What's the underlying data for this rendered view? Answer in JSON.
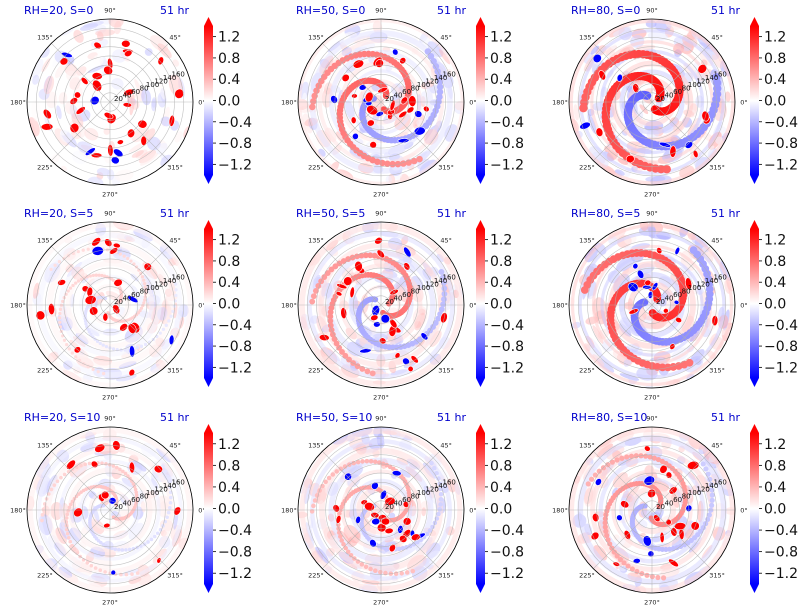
{
  "figure": {
    "colors": {
      "positive": "#ff0000",
      "negative": "#0000ff",
      "neutral": "#ffffff",
      "title": "#0000cc",
      "grid": "#b0b0b0"
    }
  },
  "chart_data": [
    {
      "type": "heatmap",
      "projection": "polar",
      "title_left": "RH=20, S=0",
      "title_right": "51 hr",
      "theta_ticks": [
        "0°",
        "45°",
        "90°",
        "135°",
        "180°",
        "225°",
        "270°",
        "315°"
      ],
      "r_ticks": [
        "20",
        "40",
        "60",
        "80",
        "100",
        "120",
        "140",
        "160"
      ],
      "colorbar": {
        "ticks": [
          "1.2",
          "0.8",
          "0.4",
          "0.0",
          "−0.4",
          "−0.8",
          "−1.2"
        ],
        "range": [
          -1.4,
          1.4
        ],
        "extend": "both"
      },
      "pattern": {
        "seed": 11,
        "bg": 0.18,
        "rings": 0.0,
        "spiral": 0.0,
        "blobs": 34,
        "blobR": [
          20,
          150
        ],
        "neg": 0.15
      }
    },
    {
      "type": "heatmap",
      "projection": "polar",
      "title_left": "RH=50, S=0",
      "title_right": "51 hr",
      "theta_ticks": [
        "0°",
        "45°",
        "90°",
        "135°",
        "180°",
        "225°",
        "270°",
        "315°"
      ],
      "r_ticks": [
        "20",
        "40",
        "60",
        "80",
        "100",
        "120",
        "140",
        "160"
      ],
      "colorbar": {
        "ticks": [
          "1.2",
          "0.8",
          "0.4",
          "0.0",
          "−0.4",
          "−0.8",
          "−1.2"
        ],
        "range": [
          -1.4,
          1.4
        ],
        "extend": "both"
      },
      "pattern": {
        "seed": 23,
        "bg": 0.3,
        "rings": 0.25,
        "spiral": 0.7,
        "blobs": 30,
        "blobR": [
          25,
          110
        ],
        "neg": 0.25
      }
    },
    {
      "type": "heatmap",
      "projection": "polar",
      "title_left": "RH=80, S=0",
      "title_right": "51 hr",
      "theta_ticks": [
        "0°",
        "45°",
        "90°",
        "135°",
        "180°",
        "225°",
        "270°",
        "315°"
      ],
      "r_ticks": [
        "20",
        "40",
        "60",
        "80",
        "100",
        "120",
        "140",
        "160"
      ],
      "colorbar": {
        "ticks": [
          "1.2",
          "0.8",
          "0.4",
          "0.0",
          "−0.4",
          "−0.8",
          "−1.2"
        ],
        "range": [
          -1.4,
          1.4
        ],
        "extend": "both"
      },
      "pattern": {
        "seed": 37,
        "bg": 0.45,
        "rings": 0.45,
        "spiral": 1.0,
        "blobs": 14,
        "blobR": [
          40,
          150
        ],
        "neg": 0.35
      }
    },
    {
      "type": "heatmap",
      "projection": "polar",
      "title_left": "RH=20, S=5",
      "title_right": "51 hr",
      "theta_ticks": [
        "0°",
        "45°",
        "90°",
        "135°",
        "180°",
        "225°",
        "270°",
        "315°"
      ],
      "r_ticks": [
        "20",
        "40",
        "60",
        "80",
        "100",
        "120",
        "140",
        "160"
      ],
      "colorbar": {
        "ticks": [
          "1.2",
          "0.8",
          "0.4",
          "0.0",
          "−0.4",
          "−0.8",
          "−1.2"
        ],
        "range": [
          -1.4,
          1.4
        ],
        "extend": "both"
      },
      "pattern": {
        "seed": 41,
        "bg": 0.22,
        "rings": 0.1,
        "spiral": 0.2,
        "blobs": 24,
        "blobR": [
          15,
          150
        ],
        "neg": 0.3
      }
    },
    {
      "type": "heatmap",
      "projection": "polar",
      "title_left": "RH=50, S=5",
      "title_right": "51 hr",
      "theta_ticks": [
        "0°",
        "45°",
        "90°",
        "135°",
        "180°",
        "225°",
        "270°",
        "315°"
      ],
      "r_ticks": [
        "20",
        "40",
        "60",
        "80",
        "100",
        "120",
        "140",
        "160"
      ],
      "colorbar": {
        "ticks": [
          "1.2",
          "0.8",
          "0.4",
          "0.0",
          "−0.4",
          "−0.8",
          "−1.2"
        ],
        "range": [
          -1.4,
          1.4
        ],
        "extend": "both"
      },
      "pattern": {
        "seed": 53,
        "bg": 0.3,
        "rings": 0.3,
        "spiral": 0.6,
        "blobs": 28,
        "blobR": [
          15,
          150
        ],
        "neg": 0.25
      }
    },
    {
      "type": "heatmap",
      "projection": "polar",
      "title_left": "RH=80, S=5",
      "title_right": "51 hr",
      "theta_ticks": [
        "0°",
        "45°",
        "90°",
        "135°",
        "180°",
        "225°",
        "270°",
        "315°"
      ],
      "r_ticks": [
        "20",
        "40",
        "60",
        "80",
        "100",
        "120",
        "140",
        "160"
      ],
      "colorbar": {
        "ticks": [
          "1.2",
          "0.8",
          "0.4",
          "0.0",
          "−0.4",
          "−0.8",
          "−1.2"
        ],
        "range": [
          -1.4,
          1.4
        ],
        "extend": "both"
      },
      "pattern": {
        "seed": 67,
        "bg": 0.4,
        "rings": 0.45,
        "spiral": 0.9,
        "blobs": 16,
        "blobR": [
          15,
          150
        ],
        "neg": 0.35
      }
    },
    {
      "type": "heatmap",
      "projection": "polar",
      "title_left": "RH=20, S=10",
      "title_right": "51 hr",
      "theta_ticks": [
        "0°",
        "45°",
        "90°",
        "135°",
        "180°",
        "225°",
        "270°",
        "315°"
      ],
      "r_ticks": [
        "20",
        "40",
        "60",
        "80",
        "100",
        "120",
        "140",
        "160"
      ],
      "colorbar": {
        "ticks": [
          "1.2",
          "0.8",
          "0.4",
          "0.0",
          "−0.4",
          "−0.8",
          "−1.2"
        ],
        "range": [
          -1.4,
          1.4
        ],
        "extend": "both"
      },
      "pattern": {
        "seed": 71,
        "bg": 0.25,
        "rings": 0.15,
        "spiral": 0.25,
        "blobs": 14,
        "blobR": [
          20,
          150
        ],
        "neg": 0.3
      }
    },
    {
      "type": "heatmap",
      "projection": "polar",
      "title_left": "RH=50, S=10",
      "title_right": "51 hr",
      "theta_ticks": [
        "0°",
        "45°",
        "90°",
        "135°",
        "180°",
        "225°",
        "270°",
        "315°"
      ],
      "r_ticks": [
        "20",
        "40",
        "60",
        "80",
        "100",
        "120",
        "140",
        "160"
      ],
      "colorbar": {
        "ticks": [
          "1.2",
          "0.8",
          "0.4",
          "0.0",
          "−0.4",
          "−0.8",
          "−1.2"
        ],
        "range": [
          -1.4,
          1.4
        ],
        "extend": "both"
      },
      "pattern": {
        "seed": 83,
        "bg": 0.35,
        "rings": 0.3,
        "spiral": 0.4,
        "blobs": 26,
        "blobR": [
          15,
          100
        ],
        "neg": 0.45
      }
    },
    {
      "type": "heatmap",
      "projection": "polar",
      "title_left": "RH=80, S=10",
      "title_right": "51 hr",
      "theta_ticks": [
        "0°",
        "45°",
        "90°",
        "135°",
        "180°",
        "225°",
        "270°",
        "315°"
      ],
      "r_ticks": [
        "20",
        "40",
        "60",
        "80",
        "100",
        "120",
        "140",
        "160"
      ],
      "colorbar": {
        "ticks": [
          "1.2",
          "0.8",
          "0.4",
          "0.0",
          "−0.4",
          "−0.8",
          "−1.2"
        ],
        "range": [
          -1.4,
          1.4
        ],
        "extend": "both"
      },
      "pattern": {
        "seed": 97,
        "bg": 0.35,
        "rings": 0.35,
        "spiral": 0.5,
        "blobs": 26,
        "blobR": [
          15,
          150
        ],
        "neg": 0.3
      }
    }
  ]
}
